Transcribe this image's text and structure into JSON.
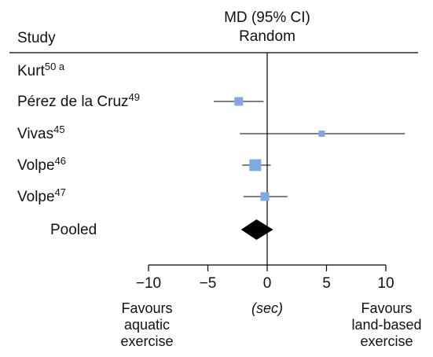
{
  "chart_data": {
    "type": "forest",
    "header": {
      "study_label": "Study",
      "effect_line1": "MD (95% CI)",
      "effect_line2": "Random"
    },
    "studies": [
      {
        "label": "Kurt",
        "ref": "50 a",
        "md": null,
        "ci": null,
        "weight": 0
      },
      {
        "label": "Pérez de la Cruz",
        "ref": "49",
        "md": -2.4,
        "ci": [
          -4.5,
          -0.3
        ],
        "weight": 2
      },
      {
        "label": "Vivas",
        "ref": "45",
        "md": 4.6,
        "ci": [
          -2.3,
          11.6
        ],
        "weight": 1
      },
      {
        "label": "Volpe",
        "ref": "46",
        "md": -1.0,
        "ci": [
          -2.1,
          0.3
        ],
        "weight": 3
      },
      {
        "label": "Volpe",
        "ref": "47",
        "md": -0.2,
        "ci": [
          -2.0,
          1.7
        ],
        "weight": 2
      }
    ],
    "pooled": {
      "label": "Pooled",
      "md": -0.9,
      "ci": [
        -2.2,
        0.5
      ]
    },
    "x_axis": {
      "ticks": [
        -10,
        -5,
        0,
        5,
        10
      ],
      "tick_labels": [
        "−10",
        "−5",
        "0",
        "5",
        "10"
      ],
      "xlim": [
        -10,
        10
      ],
      "unit_label": "(sec)",
      "left_label": [
        "Favours",
        "aquatic",
        "exercise"
      ],
      "right_label": [
        "Favours",
        "land-based",
        "exercise"
      ]
    },
    "colors": {
      "marker": "#7fa9e0",
      "pooled": "#000000",
      "lines": "#000000"
    }
  }
}
